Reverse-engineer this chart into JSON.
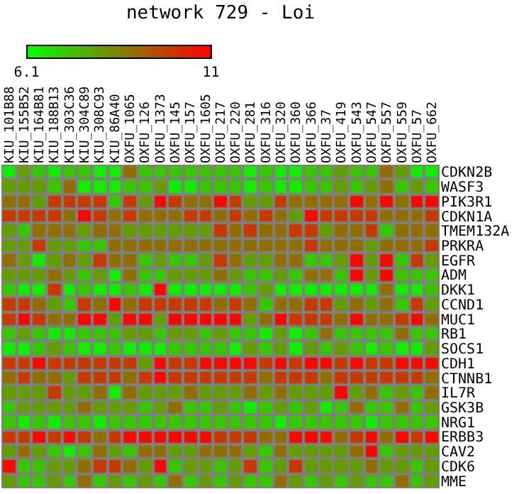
{
  "chart_data": {
    "type": "heatmap",
    "title": "network 729 - Loi",
    "categories": [
      "KIU_101B88",
      "KIU_155B52",
      "KIU_164B81",
      "KIU_188B13",
      "KIU_303C36",
      "KIU_304C89",
      "KIU_308C93",
      "KIU_86A40",
      "OXFU_1065",
      "OXFU_126",
      "OXFU_1373",
      "OXFU_145",
      "OXFU_157",
      "OXFU_1605",
      "OXFU_217",
      "OXFU_220",
      "OXFU_281",
      "OXFU_316",
      "OXFU_320",
      "OXFU_360",
      "OXFU_366",
      "OXFU_37",
      "OXFU_419",
      "OXFU_543",
      "OXFU_547",
      "OXFU_557",
      "OXFU_559",
      "OXFU_57",
      "OXFU_662"
    ],
    "y_categories": [
      "CDKN2B",
      "WASF3",
      "PIK3R1",
      "CDKN1A",
      "TMEM132A",
      "PRKRA",
      "EGFR",
      "ADM",
      "DKK1",
      "CCND1",
      "MUC1",
      "RB1",
      "SOCS1",
      "CDH1",
      "CTNNB1",
      "IL7R",
      "GSK3B",
      "NRG1",
      "ERBB3",
      "CAV2",
      "CDK6",
      "MME"
    ],
    "cells": [
      [
        6.5,
        8.0,
        7.2,
        6.5,
        7.2,
        7.2,
        6.5,
        6.5,
        8.9,
        7.2,
        7.2,
        7.2,
        7.2,
        7.2,
        7.2,
        7.2,
        6.5,
        7.2,
        6.5,
        6.5,
        7.2,
        7.2,
        8.0,
        7.2,
        7.2,
        8.9,
        8.0,
        6.5,
        6.5
      ],
      [
        8.0,
        8.0,
        8.0,
        7.2,
        8.9,
        6.5,
        6.5,
        6.5,
        7.2,
        7.2,
        8.0,
        6.5,
        6.5,
        7.2,
        7.2,
        7.2,
        6.5,
        7.2,
        6.5,
        6.5,
        7.2,
        7.2,
        8.0,
        7.2,
        8.0,
        8.9,
        7.2,
        8.0,
        7.2
      ],
      [
        8.9,
        8.9,
        8.0,
        9.9,
        9.9,
        9.9,
        9.9,
        7.2,
        9.9,
        8.0,
        10.8,
        9.9,
        8.9,
        8.9,
        10.8,
        9.9,
        8.0,
        8.0,
        9.9,
        8.9,
        8.9,
        8.9,
        8.9,
        10.8,
        8.9,
        10.8,
        8.9,
        10.8,
        10.8
      ],
      [
        9.9,
        9.9,
        9.9,
        9.9,
        8.9,
        10.8,
        9.9,
        8.9,
        9.9,
        8.9,
        8.9,
        8.9,
        9.9,
        9.9,
        8.9,
        9.9,
        8.9,
        9.9,
        8.9,
        8.0,
        10.8,
        9.9,
        9.9,
        9.9,
        9.9,
        8.9,
        8.9,
        8.9,
        9.9
      ],
      [
        8.0,
        7.2,
        8.9,
        8.9,
        8.9,
        8.0,
        8.9,
        8.9,
        8.0,
        8.0,
        8.0,
        8.0,
        8.0,
        8.0,
        9.9,
        8.9,
        9.9,
        8.9,
        8.9,
        9.9,
        9.9,
        8.0,
        8.9,
        8.9,
        9.9,
        7.2,
        8.9,
        8.9,
        8.9
      ],
      [
        8.0,
        8.0,
        9.9,
        8.0,
        8.0,
        7.2,
        7.2,
        8.9,
        8.9,
        8.9,
        8.9,
        8.9,
        8.9,
        8.9,
        8.9,
        8.9,
        8.9,
        8.9,
        8.9,
        8.9,
        9.9,
        8.9,
        8.9,
        8.9,
        8.0,
        8.9,
        8.9,
        8.9,
        9.9
      ],
      [
        8.9,
        8.0,
        6.5,
        8.0,
        8.9,
        8.0,
        9.9,
        8.9,
        8.9,
        7.2,
        8.0,
        7.2,
        7.2,
        8.0,
        9.9,
        8.9,
        8.0,
        8.0,
        8.9,
        8.9,
        7.2,
        7.2,
        8.0,
        10.8,
        8.0,
        10.8,
        7.2,
        9.9,
        8.0
      ],
      [
        8.0,
        8.0,
        8.0,
        8.9,
        8.0,
        7.2,
        8.0,
        6.5,
        8.9,
        7.2,
        7.2,
        8.0,
        8.0,
        8.0,
        8.9,
        8.0,
        7.2,
        7.2,
        8.0,
        7.2,
        8.9,
        8.9,
        7.2,
        10.8,
        8.0,
        10.8,
        7.2,
        7.2,
        7.2
      ],
      [
        7.2,
        6.5,
        6.5,
        9.9,
        6.5,
        7.2,
        6.5,
        6.5,
        7.2,
        6.5,
        10.8,
        6.5,
        6.5,
        6.5,
        6.5,
        6.5,
        7.2,
        8.0,
        6.5,
        6.5,
        6.5,
        6.5,
        6.5,
        6.5,
        6.5,
        8.9,
        6.5,
        6.5,
        7.2
      ],
      [
        9.9,
        9.9,
        8.9,
        8.0,
        7.2,
        9.9,
        8.9,
        10.8,
        8.9,
        9.9,
        9.9,
        9.9,
        9.9,
        9.9,
        8.9,
        9.9,
        8.9,
        7.2,
        8.9,
        8.9,
        9.9,
        9.9,
        8.0,
        8.9,
        8.0,
        8.9,
        7.2,
        9.9,
        8.0
      ],
      [
        9.9,
        10.8,
        9.9,
        8.9,
        8.9,
        10.8,
        10.8,
        8.0,
        10.8,
        10.8,
        8.0,
        10.8,
        10.8,
        10.8,
        10.8,
        10.8,
        8.0,
        8.9,
        10.8,
        9.9,
        9.9,
        9.9,
        8.9,
        10.8,
        8.9,
        8.9,
        9.9,
        10.8,
        8.9
      ],
      [
        7.2,
        8.0,
        7.2,
        6.5,
        6.5,
        7.2,
        7.2,
        7.2,
        8.0,
        8.0,
        7.2,
        8.0,
        8.0,
        7.2,
        8.0,
        7.2,
        7.2,
        6.5,
        8.0,
        6.5,
        7.2,
        8.9,
        7.2,
        7.2,
        7.2,
        7.2,
        8.9,
        7.2,
        7.2
      ],
      [
        6.5,
        6.5,
        7.2,
        8.0,
        7.2,
        6.5,
        6.5,
        7.2,
        6.5,
        6.5,
        6.5,
        7.2,
        7.2,
        7.2,
        7.2,
        6.5,
        8.0,
        7.2,
        8.0,
        6.5,
        8.0,
        7.2,
        8.0,
        7.2,
        6.5,
        7.2,
        6.5,
        6.5,
        8.0
      ],
      [
        9.9,
        9.9,
        10.8,
        9.9,
        9.9,
        9.9,
        9.9,
        9.9,
        9.9,
        8.0,
        10.8,
        9.9,
        9.9,
        10.8,
        10.8,
        10.8,
        10.8,
        9.9,
        10.8,
        9.9,
        10.8,
        10.8,
        9.9,
        10.8,
        9.9,
        9.9,
        10.8,
        10.8,
        10.8
      ],
      [
        8.9,
        9.9,
        8.9,
        8.9,
        8.0,
        9.9,
        9.9,
        9.9,
        8.9,
        9.9,
        10.8,
        9.9,
        9.9,
        9.9,
        9.9,
        9.9,
        9.9,
        8.9,
        9.9,
        9.9,
        9.9,
        8.9,
        9.9,
        9.9,
        9.9,
        9.9,
        9.9,
        9.9,
        8.9
      ],
      [
        8.0,
        8.0,
        8.0,
        9.9,
        8.0,
        8.0,
        8.9,
        6.5,
        8.9,
        8.0,
        8.0,
        8.0,
        8.9,
        8.0,
        8.0,
        8.0,
        8.9,
        8.0,
        8.9,
        8.0,
        8.0,
        8.0,
        10.8,
        8.0,
        8.9,
        7.2,
        8.0,
        7.2,
        8.9
      ],
      [
        7.2,
        8.0,
        8.0,
        8.0,
        8.0,
        8.9,
        8.0,
        8.0,
        8.0,
        7.2,
        8.0,
        8.9,
        7.2,
        7.2,
        8.0,
        7.2,
        6.5,
        7.2,
        8.0,
        7.2,
        8.0,
        6.5,
        7.2,
        8.9,
        7.2,
        7.2,
        8.9,
        7.2,
        8.0
      ],
      [
        7.2,
        6.5,
        7.2,
        6.5,
        7.2,
        7.2,
        6.5,
        7.2,
        7.2,
        7.2,
        7.2,
        7.2,
        7.2,
        7.2,
        7.2,
        7.2,
        7.2,
        7.2,
        6.5,
        7.2,
        7.2,
        7.2,
        7.2,
        7.2,
        6.5,
        7.2,
        7.2,
        7.2,
        7.2
      ],
      [
        9.9,
        9.9,
        10.8,
        9.9,
        10.8,
        9.9,
        8.9,
        9.9,
        10.8,
        10.8,
        10.8,
        10.8,
        10.8,
        10.8,
        9.9,
        9.9,
        9.9,
        8.9,
        8.9,
        10.8,
        10.8,
        10.8,
        8.9,
        9.9,
        10.8,
        8.9,
        10.8,
        9.9,
        10.8
      ],
      [
        8.0,
        8.9,
        8.0,
        7.2,
        6.5,
        7.2,
        8.9,
        8.0,
        7.2,
        8.9,
        8.9,
        8.0,
        8.0,
        8.9,
        8.9,
        8.9,
        8.0,
        7.2,
        8.9,
        8.0,
        8.0,
        8.0,
        8.0,
        8.9,
        10.8,
        7.2,
        8.0,
        8.0,
        8.0
      ],
      [
        10.8,
        7.2,
        7.2,
        8.0,
        8.0,
        8.9,
        9.9,
        9.9,
        8.9,
        8.0,
        10.8,
        7.2,
        8.0,
        8.0,
        7.2,
        8.0,
        9.9,
        7.2,
        8.0,
        9.9,
        8.0,
        8.0,
        8.0,
        8.0,
        8.9,
        8.0,
        8.0,
        7.2,
        8.0
      ],
      [
        8.0,
        7.2,
        7.2,
        8.0,
        7.2,
        8.9,
        7.2,
        8.0,
        7.2,
        8.0,
        7.2,
        8.9,
        7.2,
        8.0,
        7.2,
        8.0,
        7.2,
        7.2,
        8.9,
        8.0,
        7.2,
        8.0,
        7.2,
        8.0,
        7.2,
        7.2,
        8.9,
        7.2,
        8.0
      ]
    ],
    "clim": [
      6.1,
      11
    ],
    "cticks": [
      6.1,
      11
    ]
  }
}
